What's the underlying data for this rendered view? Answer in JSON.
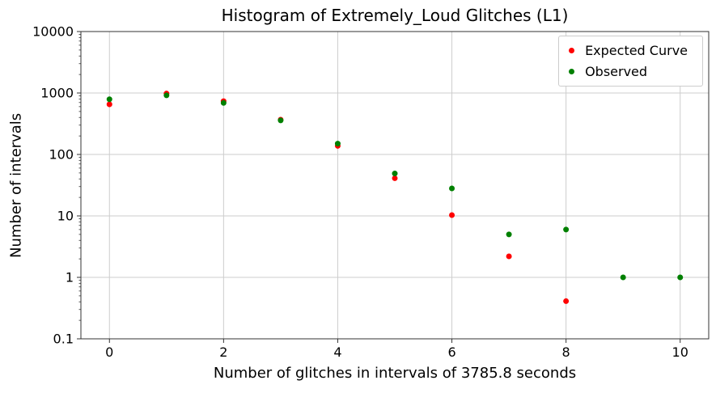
{
  "style": {
    "grid_color": "#cdcdcd",
    "spine_color": "#333333",
    "text_color": "#000000",
    "background_color": "#ffffff",
    "legend_border_color": "#cccccc",
    "expected_color": "#ff0000",
    "observed_color": "#008000"
  },
  "chart_data": {
    "type": "scatter",
    "title": "Histogram of Extremely_Loud Glitches (L1)",
    "xlabel": "Number of glitches in intervals of 3785.8 seconds",
    "ylabel": "Number of intervals",
    "x_scale": "linear",
    "y_scale": "log",
    "xlim": [
      -0.5,
      10.5
    ],
    "ylim": [
      0.1,
      10000
    ],
    "x_ticks": [
      0,
      2,
      4,
      6,
      8,
      10
    ],
    "x_tick_labels": [
      "0",
      "2",
      "4",
      "6",
      "8",
      "10"
    ],
    "y_ticks": [
      10000,
      1000,
      100,
      10,
      1,
      0.1
    ],
    "y_tick_labels": [
      "10000",
      "1000",
      "100",
      "10",
      "1",
      "0.1"
    ],
    "grid": true,
    "legend_position": "upper right",
    "marker": "circle",
    "marker_radius": 3.5,
    "series": [
      {
        "name": "Expected Curve",
        "color": "#ff0000",
        "x": [
          0,
          1,
          2,
          3,
          4,
          5,
          6,
          7,
          8
        ],
        "y": [
          655,
          980,
          735,
          368,
          138,
          41,
          10.3,
          2.2,
          0.41
        ]
      },
      {
        "name": "Observed",
        "color": "#008000",
        "x": [
          0,
          1,
          2,
          3,
          4,
          5,
          6,
          7,
          8,
          9,
          10
        ],
        "y": [
          790,
          915,
          690,
          358,
          150,
          49,
          28,
          5,
          6,
          1,
          1
        ]
      }
    ]
  }
}
